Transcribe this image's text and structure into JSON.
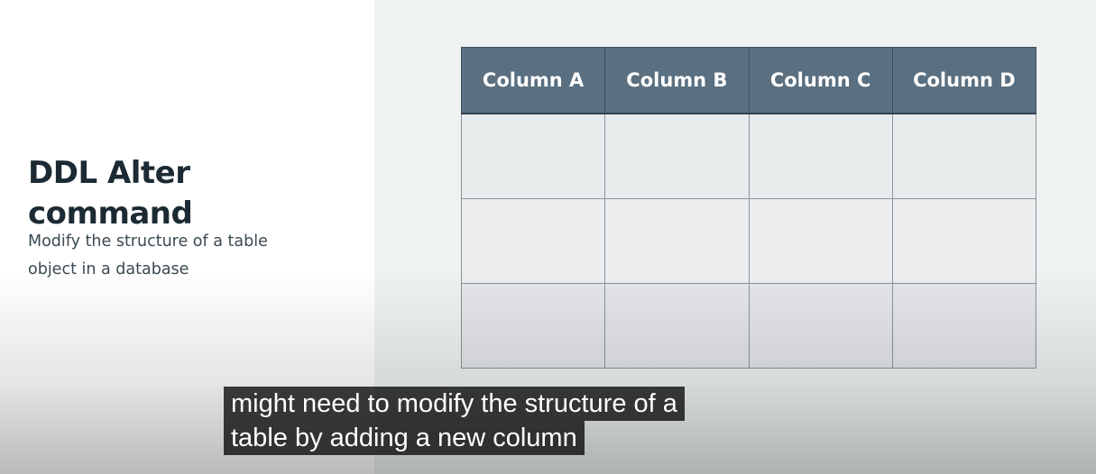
{
  "slide": {
    "title": "DDL Alter command",
    "subtitle": "Modify the structure of a table object in a database"
  },
  "table": {
    "columns": [
      "Column A",
      "Column B",
      "Column C",
      "Column D"
    ],
    "rows": [
      [
        "",
        "",
        "",
        ""
      ],
      [
        "",
        "",
        "",
        ""
      ],
      [
        "",
        "",
        "",
        ""
      ]
    ]
  },
  "captions": {
    "line1": "might need to modify the structure of a",
    "line2": "table by adding a new column"
  },
  "colors": {
    "header_bg": "#5a6f80",
    "title_text": "#1c2b33",
    "right_panel_bg": "#eef3f1"
  }
}
